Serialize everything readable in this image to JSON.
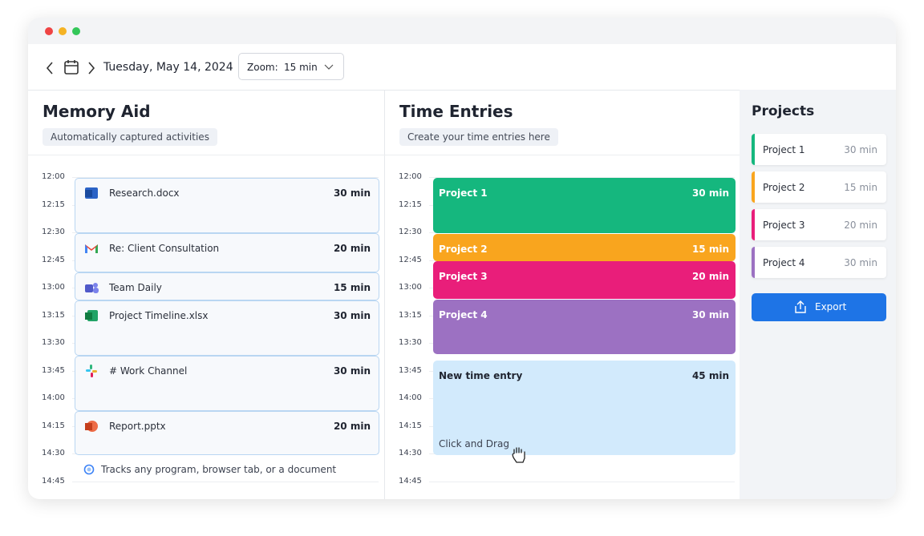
{
  "toolbar": {
    "date": "Tuesday, May 14, 2024",
    "zoom_label": "Zoom:",
    "zoom_value": "15 min"
  },
  "memory_aid": {
    "title": "Memory Aid",
    "subtitle": "Automatically captured activities",
    "times": [
      "12:00",
      "12:15",
      "12:30",
      "12:45",
      "13:00",
      "13:15",
      "13:30",
      "13:45",
      "14:00",
      "14:15",
      "14:30",
      "14:45"
    ],
    "activities": [
      {
        "name": "Research.docx",
        "duration": "30 min"
      },
      {
        "name": "Re: Client Consultation",
        "duration": "20 min"
      },
      {
        "name": "Team Daily",
        "duration": "15 min"
      },
      {
        "name": "Project Timeline.xlsx",
        "duration": "30 min"
      },
      {
        "name": "# Work Channel",
        "duration": "30 min"
      },
      {
        "name": "Report.pptx",
        "duration": "20 min"
      }
    ],
    "footer": "Tracks any program, browser tab, or a document"
  },
  "time_entries": {
    "title": "Time Entries",
    "subtitle": "Create your time entries here",
    "times": [
      "12:00",
      "12:15",
      "12:30",
      "12:45",
      "13:00",
      "13:15",
      "13:30",
      "13:45",
      "14:00",
      "14:15",
      "14:30",
      "14:45"
    ],
    "entries": [
      {
        "name": "Project 1",
        "duration": "30 min",
        "color": "#15b77e"
      },
      {
        "name": "Project 2",
        "duration": "15 min",
        "color": "#f9a51e"
      },
      {
        "name": "Project 3",
        "duration": "20 min",
        "color": "#e91e7a"
      },
      {
        "name": "Project 4",
        "duration": "30 min",
        "color": "#9c71c2"
      }
    ],
    "new_entry": {
      "name": "New time entry",
      "duration": "45 min",
      "hint": "Click and Drag"
    }
  },
  "projects": {
    "title": "Projects",
    "items": [
      {
        "name": "Project 1",
        "duration": "30 min",
        "color": "#15b77e"
      },
      {
        "name": "Project 2",
        "duration": "15 min",
        "color": "#f9a51e"
      },
      {
        "name": "Project 3",
        "duration": "20 min",
        "color": "#e91e7a"
      },
      {
        "name": "Project 4",
        "duration": "30 min",
        "color": "#9c71c2"
      }
    ],
    "export": "Export"
  }
}
